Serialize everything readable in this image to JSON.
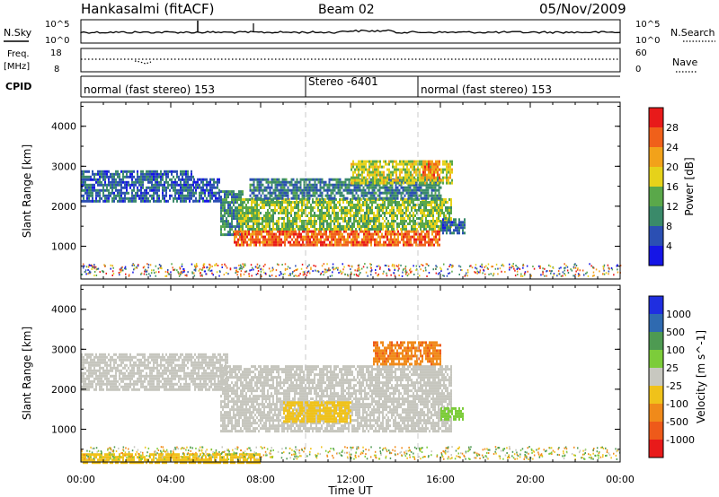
{
  "header": {
    "station": "Hankasalmi (fitACF)",
    "beam": "Beam 02",
    "date": "05/Nov/2009"
  },
  "strips": {
    "nsky_label": "N.Sky",
    "nsky_ticks": [
      "10^5",
      "10^0"
    ],
    "nsearch_label": "N.Search",
    "freq_label_1": "Freq.",
    "freq_label_2": "[MHz]",
    "freq_ticks": [
      "18",
      "8"
    ],
    "nave_label": "Nave",
    "nave_ticks": [
      "60",
      "0"
    ],
    "cpid_label": "CPID",
    "cpid_segments": [
      {
        "text": "normal (fast stereo) 153",
        "start_h": 0,
        "end_h": 10
      },
      {
        "text": "Stereo -6401",
        "start_h": 10,
        "end_h": 15
      },
      {
        "text": "normal (fast stereo) 153",
        "start_h": 15,
        "end_h": 24
      }
    ]
  },
  "colors": {
    "power_scale": [
      "#1515e6",
      "#2b4fb3",
      "#3a8a6a",
      "#5aa84a",
      "#e6d21a",
      "#f2a21a",
      "#f0601a",
      "#e81a1a"
    ],
    "velocity_scale": [
      "#1f2ee0",
      "#2f6ab0",
      "#4e9a52",
      "#7ccc3a",
      "#c8c8c0",
      "#f0c21a",
      "#f08a1a",
      "#ee5a1a",
      "#e81a1a"
    ],
    "ground_grey": "#c6c6be"
  },
  "chart_data": [
    {
      "type": "heatmap",
      "name": "Power",
      "xlabel": "Time UT",
      "ylabel": "Slant Range [km]",
      "x_ticks": [
        "00:00",
        "04:00",
        "08:00",
        "12:00",
        "16:00",
        "20:00",
        "00:00"
      ],
      "x_range_h": [
        0,
        24
      ],
      "y_ticks": [
        1000,
        2000,
        3000,
        4000
      ],
      "y_range_km": [
        180,
        4600
      ],
      "colorbar_label": "Power [dB]",
      "colorbar_ticks": [
        4,
        8,
        12,
        16,
        20,
        24,
        28
      ],
      "colorbar_range": [
        0,
        32
      ],
      "dashed_time_markers_h": [
        10,
        15
      ],
      "regions": [
        {
          "t0": 0.0,
          "t1": 5.0,
          "r0": 2100,
          "r1": 2900,
          "value": 7
        },
        {
          "t0": 5.0,
          "t1": 6.2,
          "r0": 2150,
          "r1": 2700,
          "value": 6
        },
        {
          "t0": 6.2,
          "t1": 7.2,
          "r0": 1300,
          "r1": 2400,
          "value": 10
        },
        {
          "t0": 6.8,
          "t1": 16.0,
          "r0": 1000,
          "r1": 1400,
          "value": 26
        },
        {
          "t0": 7.0,
          "t1": 16.5,
          "r0": 1400,
          "r1": 2200,
          "value": 15
        },
        {
          "t0": 7.5,
          "t1": 16.0,
          "r0": 2200,
          "r1": 2700,
          "value": 9
        },
        {
          "t0": 12.0,
          "t1": 16.5,
          "r0": 2600,
          "r1": 3150,
          "value": 17
        },
        {
          "t0": 15.2,
          "t1": 16.0,
          "r0": 2700,
          "r1": 3150,
          "value": 25
        },
        {
          "t0": 16.0,
          "t1": 17.1,
          "r0": 1350,
          "r1": 1700,
          "value": 7
        }
      ]
    },
    {
      "type": "heatmap",
      "name": "Velocity",
      "xlabel": "Time UT",
      "ylabel": "Slant Range [km]",
      "x_ticks": [
        "00:00",
        "04:00",
        "08:00",
        "12:00",
        "16:00",
        "20:00",
        "00:00"
      ],
      "x_range_h": [
        0,
        24
      ],
      "y_ticks": [
        1000,
        2000,
        3000,
        4000
      ],
      "y_range_km": [
        180,
        4600
      ],
      "colorbar_label": "Velocity [m s^-1]",
      "colorbar_ticks": [
        1000,
        500,
        100,
        25,
        -25,
        -100,
        -500,
        -1000
      ],
      "dashed_time_markers_h": [
        10,
        15
      ],
      "regions": [
        {
          "t0": 0.0,
          "t1": 6.5,
          "r0": 2000,
          "r1": 2900,
          "value": 0
        },
        {
          "t0": 6.2,
          "t1": 16.5,
          "r0": 950,
          "r1": 2600,
          "value": 0
        },
        {
          "t0": 0.0,
          "t1": 8.0,
          "r0": 180,
          "r1": 400,
          "value": -60
        },
        {
          "t0": 13.0,
          "t1": 16.0,
          "r0": 2600,
          "r1": 3200,
          "value": -400
        },
        {
          "t0": 16.0,
          "t1": 17.0,
          "r0": 1250,
          "r1": 1550,
          "value": 60
        },
        {
          "t0": 9.0,
          "t1": 12.0,
          "r0": 1200,
          "r1": 1700,
          "value": -60
        }
      ]
    }
  ]
}
